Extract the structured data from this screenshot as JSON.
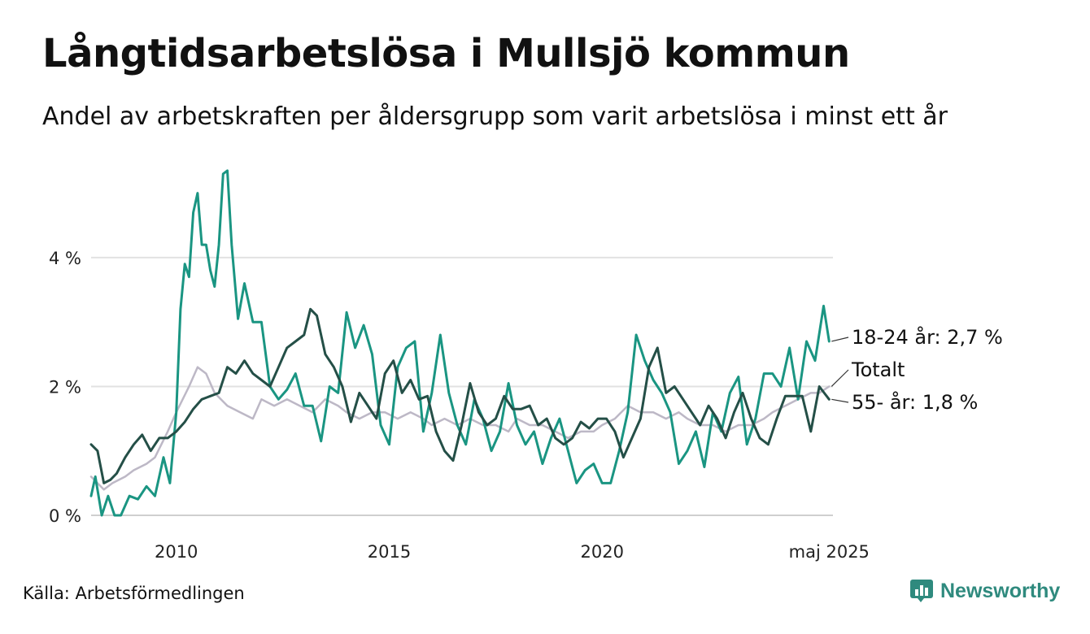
{
  "title": "Långtidsarbetslösa i Mullsjö kommun",
  "subtitle": "Andel av arbetskraften per åldersgrupp som varit arbetslösa i minst ett år",
  "source": "Källa: Arbetsförmedlingen",
  "brand": {
    "name": "Newsworthy",
    "icon": "newsworthy-logo-icon",
    "color": "#2f8a7e"
  },
  "chart_data": {
    "type": "line",
    "title": "Långtidsarbetslösa i Mullsjö kommun",
    "subtitle": "Andel av arbetskraften per åldersgrupp som varit arbetslösa i minst ett år",
    "xlabel": "",
    "ylabel": "",
    "xlim": [
      2008.0,
      2025.42
    ],
    "ylim": [
      0,
      5.5
    ],
    "grid": true,
    "legend": "direct-labels-right",
    "x_ticks": [
      {
        "value": 2010,
        "label": "2010"
      },
      {
        "value": 2015,
        "label": "2015"
      },
      {
        "value": 2020,
        "label": "2020"
      },
      {
        "value": 2025.33,
        "label": "maj 2025"
      }
    ],
    "y_ticks": [
      {
        "value": 0,
        "label": "0 %"
      },
      {
        "value": 2,
        "label": "2 %"
      },
      {
        "value": 4,
        "label": "4 %"
      }
    ],
    "series": [
      {
        "name": "Totalt",
        "end_label": "Totalt",
        "color": "#bdb8c6",
        "width": 2.5,
        "x": [
          2008.0,
          2008.3,
          2008.5,
          2008.8,
          2009.0,
          2009.3,
          2009.5,
          2009.8,
          2010.0,
          2010.3,
          2010.5,
          2010.7,
          2010.9,
          2011.2,
          2011.5,
          2011.8,
          2012.0,
          2012.3,
          2012.6,
          2012.9,
          2013.2,
          2013.5,
          2013.8,
          2014.0,
          2014.3,
          2014.6,
          2014.9,
          2015.2,
          2015.5,
          2015.8,
          2016.0,
          2016.3,
          2016.6,
          2016.9,
          2017.2,
          2017.5,
          2017.8,
          2018.0,
          2018.3,
          2018.6,
          2018.9,
          2019.2,
          2019.5,
          2019.8,
          2020.0,
          2020.3,
          2020.6,
          2020.9,
          2021.2,
          2021.5,
          2021.8,
          2022.0,
          2022.3,
          2022.6,
          2022.9,
          2023.2,
          2023.5,
          2023.8,
          2024.0,
          2024.3,
          2024.6,
          2024.9,
          2025.1,
          2025.33
        ],
        "y": [
          0.6,
          0.4,
          0.5,
          0.6,
          0.7,
          0.8,
          0.9,
          1.3,
          1.6,
          2.0,
          2.3,
          2.2,
          1.9,
          1.7,
          1.6,
          1.5,
          1.8,
          1.7,
          1.8,
          1.7,
          1.6,
          1.8,
          1.7,
          1.6,
          1.5,
          1.6,
          1.6,
          1.5,
          1.6,
          1.5,
          1.4,
          1.5,
          1.4,
          1.5,
          1.4,
          1.4,
          1.3,
          1.5,
          1.4,
          1.4,
          1.3,
          1.2,
          1.3,
          1.3,
          1.4,
          1.5,
          1.7,
          1.6,
          1.6,
          1.5,
          1.6,
          1.5,
          1.4,
          1.4,
          1.3,
          1.4,
          1.4,
          1.5,
          1.6,
          1.7,
          1.8,
          1.9,
          1.9,
          2.0
        ]
      },
      {
        "name": "18-24 år",
        "end_label": "18-24 år: 2,7 %",
        "color": "#1a9582",
        "width": 3,
        "x": [
          2008.0,
          2008.1,
          2008.25,
          2008.4,
          2008.55,
          2008.7,
          2008.9,
          2009.1,
          2009.3,
          2009.5,
          2009.7,
          2009.85,
          2010.0,
          2010.1,
          2010.2,
          2010.3,
          2010.4,
          2010.5,
          2010.6,
          2010.7,
          2010.8,
          2010.9,
          2011.0,
          2011.1,
          2011.2,
          2011.3,
          2011.45,
          2011.6,
          2011.8,
          2012.0,
          2012.2,
          2012.4,
          2012.6,
          2012.8,
          2013.0,
          2013.2,
          2013.4,
          2013.6,
          2013.8,
          2014.0,
          2014.2,
          2014.4,
          2014.6,
          2014.8,
          2015.0,
          2015.2,
          2015.4,
          2015.6,
          2015.8,
          2016.0,
          2016.2,
          2016.4,
          2016.6,
          2016.8,
          2017.0,
          2017.2,
          2017.4,
          2017.6,
          2017.8,
          2018.0,
          2018.2,
          2018.4,
          2018.6,
          2018.8,
          2019.0,
          2019.2,
          2019.4,
          2019.6,
          2019.8,
          2020.0,
          2020.2,
          2020.4,
          2020.6,
          2020.8,
          2021.0,
          2021.2,
          2021.4,
          2021.6,
          2021.8,
          2022.0,
          2022.2,
          2022.4,
          2022.6,
          2022.8,
          2023.0,
          2023.2,
          2023.4,
          2023.6,
          2023.8,
          2024.0,
          2024.2,
          2024.4,
          2024.6,
          2024.8,
          2025.0,
          2025.2,
          2025.33
        ],
        "y": [
          0.3,
          0.6,
          0.0,
          0.3,
          0.0,
          0.0,
          0.3,
          0.25,
          0.45,
          0.3,
          0.9,
          0.5,
          1.6,
          3.2,
          3.9,
          3.7,
          4.7,
          5.0,
          4.2,
          4.2,
          3.8,
          3.55,
          4.2,
          5.3,
          5.35,
          4.2,
          3.05,
          3.6,
          3.0,
          3.0,
          2.0,
          1.8,
          1.95,
          2.2,
          1.7,
          1.7,
          1.15,
          2.0,
          1.9,
          3.15,
          2.6,
          2.95,
          2.5,
          1.4,
          1.1,
          2.3,
          2.6,
          2.7,
          1.3,
          1.9,
          2.8,
          1.9,
          1.4,
          1.1,
          1.8,
          1.5,
          1.0,
          1.3,
          2.05,
          1.4,
          1.1,
          1.3,
          0.8,
          1.2,
          1.5,
          1.0,
          0.5,
          0.7,
          0.8,
          0.5,
          0.5,
          1.0,
          1.6,
          2.8,
          2.4,
          2.1,
          1.9,
          1.6,
          0.8,
          1.0,
          1.3,
          0.75,
          1.6,
          1.3,
          1.9,
          2.15,
          1.1,
          1.5,
          2.2,
          2.2,
          2.0,
          2.6,
          1.8,
          2.7,
          2.4,
          3.25,
          2.7
        ]
      },
      {
        "name": "55- år",
        "end_label": "55- år: 1,8 %",
        "color": "#244f47",
        "width": 3,
        "x": [
          2008.0,
          2008.15,
          2008.3,
          2008.45,
          2008.6,
          2008.8,
          2009.0,
          2009.2,
          2009.4,
          2009.6,
          2009.8,
          2010.0,
          2010.2,
          2010.4,
          2010.6,
          2010.8,
          2011.0,
          2011.2,
          2011.4,
          2011.6,
          2011.8,
          2012.0,
          2012.2,
          2012.4,
          2012.6,
          2012.8,
          2013.0,
          2013.15,
          2013.3,
          2013.5,
          2013.7,
          2013.9,
          2014.1,
          2014.3,
          2014.5,
          2014.7,
          2014.9,
          2015.1,
          2015.3,
          2015.5,
          2015.7,
          2015.9,
          2016.1,
          2016.3,
          2016.5,
          2016.7,
          2016.9,
          2017.1,
          2017.3,
          2017.5,
          2017.7,
          2017.9,
          2018.1,
          2018.3,
          2018.5,
          2018.7,
          2018.9,
          2019.1,
          2019.3,
          2019.5,
          2019.7,
          2019.9,
          2020.1,
          2020.3,
          2020.5,
          2020.7,
          2020.9,
          2021.1,
          2021.3,
          2021.5,
          2021.7,
          2021.9,
          2022.1,
          2022.3,
          2022.5,
          2022.7,
          2022.9,
          2023.1,
          2023.3,
          2023.5,
          2023.7,
          2023.9,
          2024.1,
          2024.3,
          2024.5,
          2024.7,
          2024.9,
          2025.1,
          2025.33
        ],
        "y": [
          1.1,
          1.0,
          0.5,
          0.55,
          0.65,
          0.9,
          1.1,
          1.25,
          1.0,
          1.2,
          1.2,
          1.3,
          1.45,
          1.65,
          1.8,
          1.85,
          1.9,
          2.3,
          2.2,
          2.4,
          2.2,
          2.1,
          2.0,
          2.3,
          2.6,
          2.7,
          2.8,
          3.2,
          3.1,
          2.5,
          2.3,
          2.0,
          1.45,
          1.9,
          1.7,
          1.5,
          2.2,
          2.4,
          1.9,
          2.1,
          1.8,
          1.85,
          1.3,
          1.0,
          0.85,
          1.4,
          2.05,
          1.6,
          1.4,
          1.5,
          1.85,
          1.65,
          1.65,
          1.7,
          1.4,
          1.5,
          1.2,
          1.1,
          1.2,
          1.45,
          1.35,
          1.5,
          1.5,
          1.3,
          0.9,
          1.2,
          1.5,
          2.3,
          2.6,
          1.9,
          2.0,
          1.8,
          1.6,
          1.4,
          1.7,
          1.5,
          1.2,
          1.6,
          1.9,
          1.5,
          1.2,
          1.1,
          1.5,
          1.85,
          1.85,
          1.85,
          1.3,
          2.0,
          1.8
        ]
      }
    ]
  }
}
